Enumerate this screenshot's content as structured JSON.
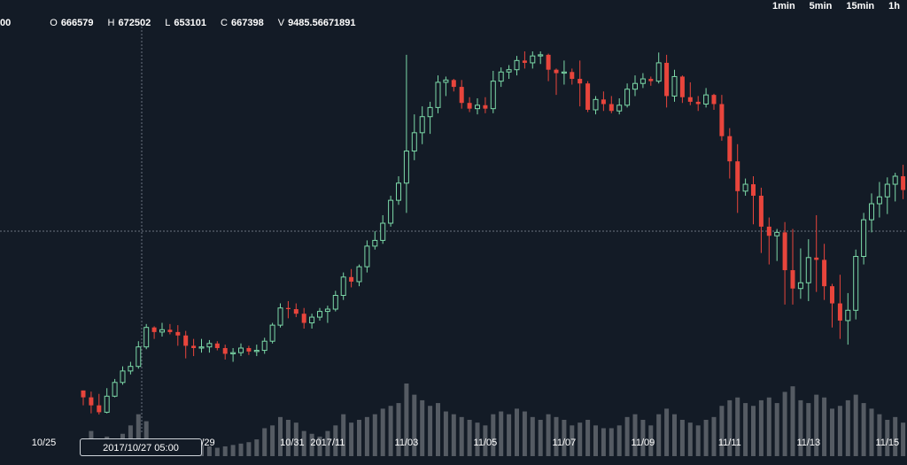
{
  "toolbar": {
    "intervals": [
      "1min",
      "5min",
      "15min",
      "1h"
    ]
  },
  "ohlc": {
    "lead_fragment": "00",
    "open_label": "O",
    "open": "666579",
    "high_label": "H",
    "high": "672502",
    "low_label": "L",
    "low": "653101",
    "close_label": "C",
    "close": "667398",
    "volume_label": "V",
    "volume": "9485.56671891"
  },
  "crosshair_label": "2017/10/27 05:00",
  "colors": {
    "background": "#131b26",
    "up": "#7cd9a8",
    "down": "#e8453c",
    "volume": "#555b63",
    "crosshair": "#6b7380"
  },
  "chart_data": {
    "type": "candlestick",
    "x_tick_labels": [
      "10/25",
      "0/29",
      "10/31",
      "2017/11",
      "11/03",
      "11/05",
      "11/07",
      "11/09",
      "11/11",
      "11/13",
      "11/15"
    ],
    "y_axis_shown": false,
    "grid": false,
    "candles": [
      [
        625,
        625,
        612,
        619
      ],
      [
        619,
        624,
        605,
        612
      ],
      [
        612,
        622,
        604,
        606
      ],
      [
        606,
        627,
        605,
        620
      ],
      [
        620,
        635,
        619,
        632
      ],
      [
        632,
        646,
        630,
        642
      ],
      [
        642,
        650,
        639,
        646
      ],
      [
        646,
        668,
        644,
        663
      ],
      [
        663,
        683,
        661,
        680
      ],
      [
        680,
        681,
        670,
        676
      ],
      [
        676,
        684,
        672,
        678
      ],
      [
        678,
        683,
        674,
        676
      ],
      [
        676,
        682,
        664,
        673
      ],
      [
        673,
        677,
        653,
        664
      ],
      [
        664,
        670,
        655,
        662
      ],
      [
        662,
        670,
        658,
        663
      ],
      [
        663,
        669,
        658,
        666
      ],
      [
        666,
        668,
        660,
        662
      ],
      [
        662,
        665,
        652,
        657
      ],
      [
        657,
        662,
        650,
        658
      ],
      [
        658,
        666,
        655,
        662
      ],
      [
        662,
        664,
        656,
        659
      ],
      [
        659,
        665,
        655,
        660
      ],
      [
        660,
        671,
        657,
        668
      ],
      [
        668,
        684,
        666,
        682
      ],
      [
        682,
        701,
        680,
        697
      ],
      [
        697,
        703,
        688,
        696
      ],
      [
        696,
        701,
        689,
        692
      ],
      [
        692,
        697,
        679,
        684
      ],
      [
        684,
        692,
        679,
        689
      ],
      [
        689,
        697,
        686,
        694
      ],
      [
        694,
        699,
        684,
        696
      ],
      [
        696,
        712,
        694,
        708
      ],
      [
        708,
        728,
        704,
        724
      ],
      [
        724,
        731,
        715,
        720
      ],
      [
        720,
        735,
        716,
        733
      ],
      [
        733,
        756,
        728,
        751
      ],
      [
        751,
        764,
        748,
        756
      ],
      [
        756,
        778,
        753,
        771
      ],
      [
        771,
        795,
        768,
        791
      ],
      [
        791,
        812,
        787,
        806
      ],
      [
        806,
        918,
        780,
        834
      ],
      [
        834,
        866,
        826,
        850
      ],
      [
        850,
        873,
        840,
        864
      ],
      [
        864,
        877,
        849,
        872
      ],
      [
        872,
        900,
        867,
        894
      ],
      [
        894,
        899,
        882,
        896
      ],
      [
        896,
        897,
        886,
        890
      ],
      [
        890,
        896,
        871,
        876
      ],
      [
        876,
        881,
        868,
        871
      ],
      [
        871,
        880,
        866,
        874
      ],
      [
        874,
        881,
        867,
        871
      ],
      [
        871,
        904,
        867,
        895
      ],
      [
        895,
        907,
        890,
        903
      ],
      [
        903,
        909,
        897,
        905
      ],
      [
        905,
        917,
        900,
        913
      ],
      [
        913,
        921,
        906,
        911
      ],
      [
        911,
        921,
        906,
        917
      ],
      [
        917,
        921,
        910,
        918
      ],
      [
        918,
        919,
        895,
        905
      ],
      [
        905,
        906,
        883,
        902
      ],
      [
        902,
        913,
        892,
        903
      ],
      [
        903,
        906,
        892,
        897
      ],
      [
        897,
        913,
        873,
        893
      ],
      [
        893,
        895,
        868,
        870
      ],
      [
        870,
        882,
        866,
        879
      ],
      [
        879,
        886,
        869,
        875
      ],
      [
        875,
        882,
        867,
        869
      ],
      [
        869,
        880,
        866,
        874
      ],
      [
        874,
        893,
        872,
        888
      ],
      [
        888,
        900,
        882,
        893
      ],
      [
        893,
        902,
        889,
        897
      ],
      [
        897,
        899,
        891,
        895
      ],
      [
        895,
        920,
        893,
        911
      ],
      [
        911,
        918,
        872,
        882
      ],
      [
        882,
        905,
        877,
        899
      ],
      [
        899,
        900,
        876,
        881
      ],
      [
        881,
        894,
        874,
        877
      ],
      [
        877,
        882,
        869,
        875
      ],
      [
        875,
        889,
        872,
        883
      ],
      [
        883,
        884,
        870,
        875
      ],
      [
        875,
        883,
        843,
        847
      ],
      [
        847,
        854,
        810,
        825
      ],
      [
        825,
        840,
        780,
        799
      ],
      [
        799,
        810,
        795,
        805
      ],
      [
        805,
        812,
        770,
        795
      ],
      [
        795,
        802,
        745,
        768
      ],
      [
        768,
        776,
        735,
        760
      ],
      [
        760,
        766,
        738,
        763
      ],
      [
        763,
        772,
        700,
        730
      ],
      [
        730,
        766,
        700,
        714
      ],
      [
        714,
        749,
        705,
        719
      ],
      [
        719,
        757,
        703,
        741
      ],
      [
        741,
        778,
        711,
        739
      ],
      [
        739,
        753,
        704,
        716
      ],
      [
        716,
        718,
        680,
        701
      ],
      [
        701,
        726,
        670,
        686
      ],
      [
        686,
        710,
        665,
        695
      ],
      [
        695,
        748,
        687,
        742
      ],
      [
        742,
        780,
        735,
        774
      ],
      [
        774,
        797,
        763,
        788
      ],
      [
        788,
        807,
        776,
        794
      ],
      [
        794,
        811,
        779,
        805
      ],
      [
        805,
        815,
        790,
        812
      ],
      [
        812,
        822,
        792,
        800
      ],
      [
        800,
        810,
        789,
        797
      ],
      [
        797,
        807,
        790,
        802
      ],
      [
        802,
        810,
        795,
        804
      ],
      [
        804,
        818,
        795,
        815
      ]
    ],
    "volume": [
      12,
      18,
      8,
      14,
      10,
      16,
      22,
      30,
      25,
      12,
      10,
      9,
      8,
      12,
      10,
      8,
      7,
      6,
      7,
      8,
      9,
      10,
      12,
      20,
      22,
      28,
      26,
      24,
      18,
      16,
      14,
      18,
      22,
      30,
      24,
      26,
      28,
      30,
      34,
      36,
      38,
      52,
      44,
      40,
      36,
      38,
      32,
      30,
      28,
      26,
      24,
      22,
      30,
      32,
      30,
      34,
      32,
      28,
      26,
      30,
      28,
      26,
      22,
      24,
      26,
      22,
      20,
      20,
      22,
      28,
      30,
      26,
      22,
      30,
      34,
      30,
      26,
      24,
      22,
      26,
      28,
      36,
      40,
      42,
      38,
      36,
      40,
      42,
      38,
      46,
      50,
      40,
      38,
      44,
      42,
      34,
      36,
      40,
      44,
      38,
      34,
      30,
      26,
      28,
      24,
      22,
      20,
      24,
      26
    ]
  }
}
